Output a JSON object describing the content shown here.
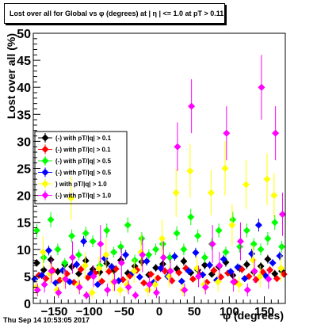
{
  "chart_data": {
    "type": "scatter",
    "title": "Lost over all for Global vs φ (degrees) at | η | <= 1.0 at pT > 0.11",
    "xlabel": "φ (degrees)",
    "ylabel": "Lost over all (%)",
    "xlim": [
      -180,
      180
    ],
    "ylim": [
      0,
      50
    ],
    "x_ticks": [
      -150,
      -100,
      -50,
      0,
      50,
      100,
      150
    ],
    "y_ticks": [
      0,
      5,
      10,
      15,
      20,
      25,
      30,
      35,
      40,
      45,
      50
    ],
    "grid": false,
    "legend_position": "left",
    "series": [
      {
        "name": "(-) with pT/|q| > 0.1",
        "legend_label": "(-) with pT/|q| > 0.1",
        "color": "#000000",
        "x": [
          -175,
          -165,
          -155,
          -145,
          -135,
          -125,
          -115,
          -105,
          -95,
          -85,
          -75,
          -65,
          -55,
          -45,
          -35,
          -25,
          -15,
          -5,
          5,
          15,
          25,
          35,
          45,
          55,
          65,
          75,
          85,
          95,
          105,
          115,
          125,
          135,
          145,
          155,
          165,
          175
        ],
        "y": [
          7.5,
          6.2,
          8.1,
          5.9,
          7.2,
          6.8,
          5.5,
          7.9,
          6.3,
          5.8,
          7.4,
          6.1,
          8.0,
          5.6,
          6.9,
          7.7,
          5.3,
          6.6,
          7.3,
          5.9,
          6.4,
          7.8,
          5.7,
          6.2,
          7.1,
          5.4,
          6.8,
          7.6,
          5.2,
          6.5,
          7.2,
          5.8,
          6.9,
          8.2,
          5.5,
          6.0
        ],
        "err": [
          0.7,
          0.7,
          0.8,
          0.7,
          0.7,
          0.7,
          0.6,
          0.8,
          0.7,
          0.7,
          0.8,
          0.7,
          0.8,
          0.7,
          0.7,
          0.8,
          0.6,
          0.7,
          0.8,
          0.7,
          0.7,
          0.8,
          0.7,
          0.7,
          0.8,
          0.6,
          0.7,
          0.8,
          0.6,
          0.7,
          0.8,
          0.7,
          0.7,
          0.8,
          0.7,
          0.7
        ]
      },
      {
        "name": "(-) with pT/|c| > 0.1",
        "legend_label": "(-) with pT/|c| > 0.1",
        "color": "#ff0000",
        "x": [
          -172,
          -162,
          -152,
          -142,
          -132,
          -122,
          -112,
          -102,
          -92,
          -82,
          -72,
          -62,
          -52,
          -42,
          -32,
          -22,
          -12,
          -2,
          8,
          18,
          28,
          38,
          48,
          58,
          68,
          78,
          88,
          98,
          108,
          118,
          128,
          138,
          148,
          158,
          168,
          178
        ],
        "y": [
          5.2,
          4.6,
          6.1,
          4.3,
          5.5,
          3.9,
          6.3,
          4.8,
          5.6,
          4.1,
          5.9,
          6.4,
          4.4,
          5.1,
          6.2,
          3.8,
          5.4,
          4.7,
          6.0,
          4.2,
          5.7,
          6.5,
          4.5,
          5.3,
          3.9,
          6.1,
          4.9,
          5.6,
          4.0,
          6.3,
          5.0,
          4.4,
          5.8,
          6.2,
          4.6,
          5.4
        ],
        "err": [
          0.6,
          0.6,
          0.7,
          0.6,
          0.6,
          0.5,
          0.7,
          0.6,
          0.6,
          0.5,
          0.7,
          0.7,
          0.6,
          0.6,
          0.7,
          0.5,
          0.6,
          0.6,
          0.7,
          0.5,
          0.6,
          0.7,
          0.6,
          0.6,
          0.5,
          0.7,
          0.6,
          0.6,
          0.5,
          0.7,
          0.6,
          0.6,
          0.6,
          0.7,
          0.6,
          0.6
        ]
      },
      {
        "name": "(-) with pT/|q| > 0.5",
        "legend_label": "(-) with pT/|q| > 0.5",
        "color": "#00ff00",
        "x": [
          -175,
          -165,
          -155,
          -145,
          -135,
          -125,
          -115,
          -105,
          -95,
          -85,
          -75,
          -65,
          -55,
          -45,
          -35,
          -25,
          -15,
          -5,
          5,
          15,
          25,
          35,
          45,
          55,
          65,
          75,
          85,
          95,
          105,
          115,
          125,
          135,
          145,
          155,
          165,
          175
        ],
        "y": [
          13.5,
          8.5,
          15.5,
          10.0,
          7.5,
          12.5,
          9.0,
          13.0,
          11.5,
          7.0,
          13.5,
          9.5,
          10.5,
          14.5,
          8.0,
          12.0,
          9.0,
          10.0,
          11.0,
          8.5,
          13.0,
          10.0,
          16.0,
          12.5,
          8.5,
          11.0,
          13.5,
          9.5,
          15.5,
          10.5,
          13.5,
          11.0,
          10.0,
          12.0,
          15.0,
          10.5
        ],
        "err": [
          1.2,
          1.0,
          1.4,
          1.1,
          0.9,
          1.2,
          1.0,
          1.2,
          1.1,
          0.9,
          1.3,
          1.0,
          1.1,
          1.4,
          1.0,
          1.2,
          1.0,
          1.1,
          1.1,
          1.0,
          1.3,
          1.1,
          1.5,
          1.2,
          1.0,
          1.1,
          1.3,
          1.0,
          1.4,
          1.1,
          1.3,
          1.1,
          1.1,
          1.2,
          1.4,
          1.1
        ]
      },
      {
        "name": "(-) with pT/|q| > 0.5",
        "legend_label": "(-) with pT/|q| > 0.5",
        "color": "#0000ff",
        "x": [
          -178,
          -168,
          -158,
          -148,
          -138,
          -128,
          -118,
          -108,
          -98,
          -88,
          -78,
          -68,
          -58,
          -48,
          -38,
          -28,
          -18,
          -8,
          2,
          12,
          22,
          32,
          42,
          52,
          62,
          72,
          82,
          92,
          102,
          112,
          122,
          132,
          142,
          152,
          162,
          172
        ],
        "y": [
          4.5,
          5.2,
          9.8,
          3.8,
          6.1,
          4.0,
          7.2,
          11.5,
          5.5,
          3.5,
          8.3,
          6.8,
          4.2,
          9.0,
          5.7,
          4.9,
          7.8,
          3.9,
          6.5,
          5.0,
          8.7,
          4.1,
          6.0,
          9.4,
          5.3,
          7.1,
          4.3,
          8.2,
          5.9,
          6.7,
          4.6,
          9.2,
          14.5,
          5.1,
          7.5,
          8.8
        ],
        "err": [
          0.6,
          0.6,
          0.9,
          0.5,
          0.7,
          0.5,
          0.7,
          1.0,
          0.6,
          0.5,
          0.8,
          0.7,
          0.5,
          0.9,
          0.6,
          0.6,
          0.8,
          0.5,
          0.7,
          0.6,
          0.8,
          0.5,
          0.7,
          0.9,
          0.6,
          0.7,
          0.5,
          0.8,
          0.6,
          0.7,
          0.6,
          0.9,
          1.2,
          0.6,
          0.7,
          0.8
        ]
      },
      {
        "name": "(-) with pT/|q| > 1.0",
        "legend_label": ") with pT/|q| > 1.0",
        "color": "#ffff00",
        "x": [
          -176,
          -166,
          -156,
          -146,
          -136,
          -126,
          -116,
          -106,
          -96,
          -86,
          -76,
          -66,
          -56,
          -46,
          -36,
          -26,
          -16,
          -6,
          4,
          14,
          24,
          34,
          44,
          54,
          64,
          74,
          84,
          94,
          104,
          114,
          124,
          134,
          144,
          154,
          164,
          174
        ],
        "y": [
          3.0,
          9.5,
          5.5,
          2.5,
          4.5,
          19.5,
          3.5,
          7.0,
          2.0,
          6.5,
          9.0,
          4.0,
          2.5,
          3.5,
          6.0,
          9.5,
          2.5,
          3.5,
          12.0,
          5.0,
          20.5,
          2.5,
          24.5,
          6.5,
          3.5,
          20.5,
          4.0,
          25.0,
          14.5,
          3.5,
          22.0,
          8.0,
          5.0,
          23.0,
          20.0,
          6.5
        ],
        "err": [
          1.5,
          3.0,
          2.0,
          1.2,
          1.8,
          4.0,
          1.5,
          2.5,
          1.0,
          2.2,
          3.0,
          1.8,
          1.2,
          1.5,
          2.2,
          3.2,
          1.2,
          1.5,
          3.5,
          2.0,
          4.5,
          1.2,
          5.0,
          2.2,
          1.5,
          4.2,
          1.8,
          5.0,
          3.8,
          1.5,
          4.5,
          2.8,
          2.0,
          4.8,
          4.2,
          2.5
        ]
      },
      {
        "name": "(-) with pT/|q| > 1.0",
        "legend_label": "(-) with pT/|q| > 1.0",
        "color": "#ff00ff",
        "x": [
          -174,
          -164,
          -154,
          -144,
          -134,
          -124,
          -114,
          -104,
          -94,
          -84,
          -74,
          -64,
          -54,
          -44,
          -34,
          -24,
          -14,
          -4,
          6,
          16,
          26,
          36,
          46,
          56,
          66,
          76,
          86,
          96,
          106,
          116,
          126,
          136,
          146,
          156,
          166,
          176
        ],
        "y": [
          2.5,
          3.5,
          6.0,
          2.0,
          4.5,
          8.5,
          3.0,
          1.5,
          5.0,
          11.0,
          2.5,
          4.0,
          7.5,
          3.0,
          1.5,
          9.0,
          3.5,
          2.0,
          8.5,
          6.0,
          29.0,
          2.5,
          36.5,
          5.0,
          3.0,
          11.0,
          7.0,
          31.5,
          4.0,
          11.5,
          2.5,
          6.0,
          40.0,
          4.5,
          31.5,
          16.5
        ],
        "err": [
          1.2,
          1.5,
          2.2,
          1.0,
          1.8,
          3.0,
          1.3,
          0.8,
          2.0,
          3.5,
          1.2,
          1.7,
          2.8,
          1.3,
          0.8,
          3.2,
          1.5,
          1.0,
          3.0,
          2.2,
          4.5,
          1.2,
          5.0,
          2.0,
          1.3,
          3.5,
          2.5,
          5.0,
          1.8,
          3.5,
          1.2,
          2.2,
          6.0,
          1.8,
          5.0,
          4.0
        ]
      }
    ]
  },
  "footer_text": "Thu Sep 14 10:53:05 2017"
}
